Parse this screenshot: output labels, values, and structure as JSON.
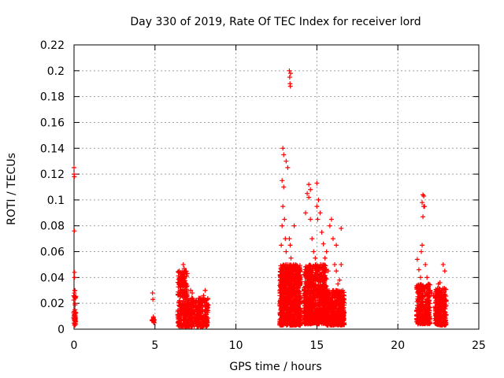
{
  "chart_data": {
    "type": "scatter",
    "title": "Day 330 of 2019, Rate Of TEC Index for receiver lord",
    "xlabel": "GPS time / hours",
    "ylabel": "ROTI / TECUs",
    "xlim": [
      0,
      25
    ],
    "ylim": [
      0,
      0.22
    ],
    "xticks": [
      0,
      5,
      10,
      15,
      20,
      25
    ],
    "xtick_labels": [
      "0",
      "5",
      "10",
      "15",
      "20",
      "25"
    ],
    "yticks": [
      0,
      0.02,
      0.04,
      0.06,
      0.08,
      0.1,
      0.12,
      0.14,
      0.16,
      0.18,
      0.2,
      0.22
    ],
    "ytick_labels": [
      "0",
      "0.02",
      "0.04",
      "0.06",
      "0.08",
      "0.1",
      "0.12",
      "0.14",
      "0.16",
      "0.18",
      "0.2",
      "0.22"
    ],
    "grid": true,
    "marker": "+",
    "color": "#ff0000",
    "series": [
      {
        "x": [
          0.0,
          0.0,
          0.02,
          0.02,
          0.03,
          0.03,
          0.05,
          0.05,
          0.06,
          0.06,
          0.08,
          0.08,
          0.1,
          0.1,
          4.85,
          4.87,
          4.9,
          4.92,
          4.95,
          6.5,
          6.55,
          6.6,
          6.7,
          6.75,
          6.8,
          6.85,
          6.9,
          7.0,
          7.1,
          7.2,
          7.3,
          7.4,
          7.5,
          7.6,
          7.7,
          7.8,
          7.9,
          8.0,
          8.1,
          8.2,
          12.8,
          12.85,
          12.9,
          12.95,
          13.0,
          13.05,
          13.1,
          13.15,
          13.2,
          13.25,
          13.3,
          13.35,
          13.4,
          13.5,
          13.6,
          13.7,
          13.8,
          13.9,
          14.3,
          14.4,
          14.5,
          14.6,
          14.7,
          14.8,
          14.9,
          15.0,
          15.1,
          15.2,
          15.3,
          15.4,
          15.5,
          15.6,
          15.7,
          15.8,
          15.9,
          16.0,
          16.1,
          16.2,
          16.3,
          16.4,
          16.5,
          16.6,
          21.2,
          21.3,
          21.4,
          21.45,
          21.5,
          21.55,
          21.6,
          21.7,
          21.8,
          21.9,
          22.0,
          22.1,
          22.2,
          22.3,
          22.4,
          22.5,
          22.6,
          22.7,
          22.8,
          22.9,
          13.3,
          13.32,
          13.34,
          13.36,
          13.38,
          12.9,
          12.95,
          13.1,
          13.2,
          12.85,
          15.0,
          15.05,
          14.5,
          14.6,
          21.55,
          21.6,
          21.5,
          21.65,
          16.2,
          16.5
        ],
        "y": [
          0.12,
          0.125,
          0.118,
          0.076,
          0.044,
          0.04,
          0.03,
          0.025,
          0.02,
          0.015,
          0.012,
          0.008,
          0.006,
          0.004,
          0.028,
          0.023,
          0.008,
          0.006,
          0.005,
          0.045,
          0.04,
          0.03,
          0.02,
          0.05,
          0.047,
          0.035,
          0.025,
          0.018,
          0.012,
          0.03,
          0.028,
          0.022,
          0.02,
          0.015,
          0.012,
          0.02,
          0.022,
          0.026,
          0.03,
          0.015,
          0.065,
          0.08,
          0.095,
          0.11,
          0.085,
          0.07,
          0.06,
          0.05,
          0.04,
          0.03,
          0.07,
          0.065,
          0.055,
          0.045,
          0.08,
          0.05,
          0.035,
          0.025,
          0.09,
          0.105,
          0.112,
          0.085,
          0.07,
          0.06,
          0.055,
          0.113,
          0.1,
          0.09,
          0.075,
          0.066,
          0.055,
          0.06,
          0.045,
          0.08,
          0.085,
          0.07,
          0.05,
          0.045,
          0.035,
          0.038,
          0.078,
          0.03,
          0.054,
          0.046,
          0.04,
          0.06,
          0.065,
          0.087,
          0.095,
          0.05,
          0.04,
          0.035,
          0.03,
          0.028,
          0.026,
          0.024,
          0.03,
          0.035,
          0.036,
          0.03,
          0.05,
          0.045,
          0.2,
          0.195,
          0.19,
          0.188,
          0.198,
          0.14,
          0.135,
          0.13,
          0.125,
          0.115,
          0.095,
          0.085,
          0.102,
          0.108,
          0.104,
          0.103,
          0.098,
          0.095,
          0.065,
          0.05
        ]
      }
    ],
    "dense_clusters": [
      {
        "x_range": [
          -0.05,
          0.12
        ],
        "y_range": [
          0.003,
          0.03
        ],
        "count": 35
      },
      {
        "x_range": [
          4.82,
          4.98
        ],
        "y_range": [
          0.004,
          0.01
        ],
        "count": 10
      },
      {
        "x_range": [
          6.4,
          7.0
        ],
        "y_range": [
          0.002,
          0.045
        ],
        "count": 260
      },
      {
        "x_range": [
          7.0,
          8.3
        ],
        "y_range": [
          0.002,
          0.025
        ],
        "count": 320
      },
      {
        "x_range": [
          12.7,
          14.0
        ],
        "y_range": [
          0.003,
          0.05
        ],
        "count": 900
      },
      {
        "x_range": [
          14.2,
          15.6
        ],
        "y_range": [
          0.004,
          0.05
        ],
        "count": 800
      },
      {
        "x_range": [
          15.6,
          16.7
        ],
        "y_range": [
          0.003,
          0.03
        ],
        "count": 500
      },
      {
        "x_range": [
          21.15,
          22.0
        ],
        "y_range": [
          0.004,
          0.035
        ],
        "count": 300
      },
      {
        "x_range": [
          22.3,
          23.0
        ],
        "y_range": [
          0.003,
          0.032
        ],
        "count": 280
      }
    ]
  }
}
